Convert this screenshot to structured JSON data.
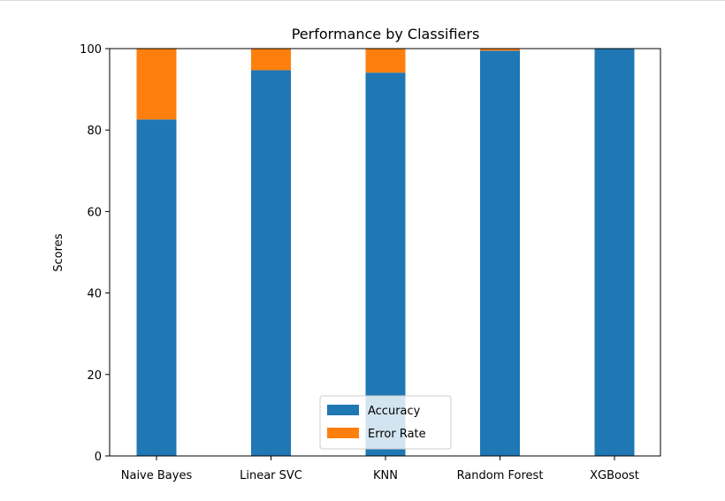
{
  "chart_data": {
    "type": "bar",
    "stacked": true,
    "title": "Performance by Classifiers",
    "xlabel": "",
    "ylabel": "Scores",
    "ylim": [
      0,
      100
    ],
    "yticks": [
      0,
      20,
      40,
      60,
      80,
      100
    ],
    "categories": [
      "Naive Bayes",
      "Linear SVC",
      "KNN",
      "Random Forest",
      "XGBoost"
    ],
    "series": [
      {
        "name": "Accuracy",
        "color": "#1f77b4",
        "values": [
          82.6,
          94.7,
          94.1,
          99.5,
          99.9
        ]
      },
      {
        "name": "Error Rate",
        "color": "#ff7f0e",
        "values": [
          17.4,
          5.3,
          5.9,
          0.5,
          0.1
        ]
      }
    ],
    "legend": "lower center",
    "grid": false
  }
}
